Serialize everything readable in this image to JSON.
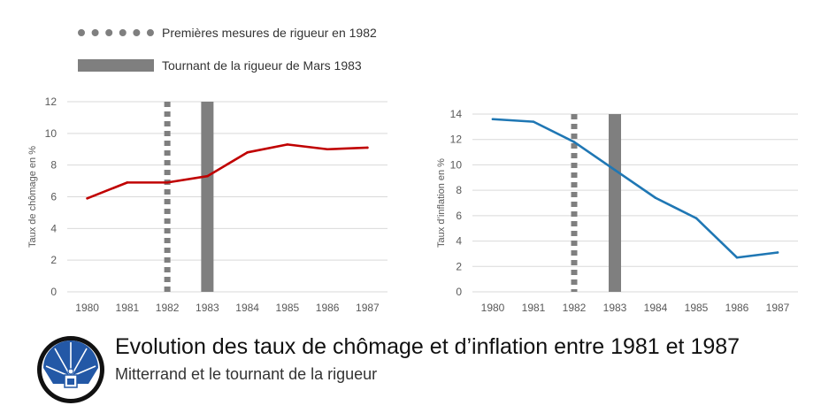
{
  "legend": {
    "dashed_label": "Premières mesures de rigueur en 1982",
    "bar_label": "Tournant de la rigueur de Mars 1983"
  },
  "colors": {
    "unemployment_line": "#c00000",
    "inflation_line": "#1f77b4",
    "marker_gray": "#7f7f7f",
    "gridline": "#d9d9d9",
    "logo_blue": "#2358a6"
  },
  "caption": {
    "title": "Evolution des taux de chômage et d’inflation entre 1981 et 1987",
    "subtitle": "Mitterrand et le tournant de la rigueur"
  },
  "logo": {
    "icon": "blue-fan-podium-emblem-icon"
  },
  "chart_data": [
    {
      "type": "line",
      "title": "",
      "xlabel": "",
      "ylabel": "Taux de chômage en %",
      "categories": [
        "1980",
        "1981",
        "1982",
        "1983",
        "1984",
        "1985",
        "1986",
        "1987"
      ],
      "series": [
        {
          "values": [
            5.9,
            6.9,
            6.9,
            7.3,
            8.8,
            9.3,
            9.0,
            9.1
          ]
        }
      ],
      "ylim": [
        0,
        12
      ],
      "yticks": [
        0,
        2,
        4,
        6,
        8,
        10,
        12
      ],
      "grid": true,
      "markers": {
        "dashed_at": "1982",
        "bar_at": "1983"
      }
    },
    {
      "type": "line",
      "title": "",
      "xlabel": "",
      "ylabel": "Taux d’inflation en %",
      "categories": [
        "1980",
        "1981",
        "1982",
        "1983",
        "1984",
        "1985",
        "1986",
        "1987"
      ],
      "series": [
        {
          "values": [
            13.6,
            13.4,
            11.8,
            9.6,
            7.4,
            5.8,
            2.7,
            3.1
          ]
        }
      ],
      "ylim": [
        0,
        14
      ],
      "yticks": [
        0,
        2,
        4,
        6,
        8,
        10,
        12,
        14
      ],
      "grid": true,
      "markers": {
        "dashed_at": "1982",
        "bar_at": "1983"
      }
    }
  ]
}
